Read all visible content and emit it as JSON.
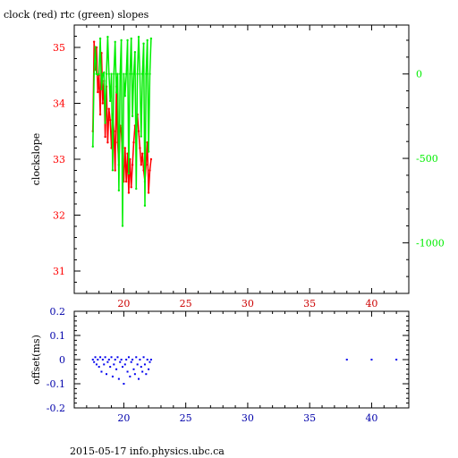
{
  "title": "clock (red) rtc (green) slopes",
  "footer": "2015-05-17 info.physics.ubc.ca",
  "colors": {
    "axis": "#000000",
    "clock": "#ff0000",
    "rtc": "#00ee00",
    "offset": "#0000ee",
    "top_x_ticks": "#cc0000",
    "bottom_y_ticks": "#0000aa"
  },
  "chart_data": [
    {
      "type": "line",
      "title": "clock (red) rtc (green) slopes",
      "ylabel": "clockslope",
      "xlim": [
        16.0,
        43.0
      ],
      "ylim_left": [
        30.6,
        35.4
      ],
      "ylim_right": [
        -1300,
        290
      ],
      "x_ticks": [
        20,
        25,
        30,
        35,
        40
      ],
      "y_left_ticks": [
        31,
        32,
        33,
        34,
        35
      ],
      "y_right_ticks": [
        0,
        -500,
        -1000
      ],
      "grid": false,
      "series": [
        {
          "name": "clock",
          "axis": "left",
          "x": [
            17.5,
            17.6,
            17.7,
            17.8,
            17.9,
            18.0,
            18.1,
            18.2,
            18.3,
            18.4,
            18.5,
            18.6,
            18.7,
            18.8,
            18.9,
            19.0,
            19.1,
            19.2,
            19.3,
            19.4,
            19.5,
            19.6,
            19.7,
            19.8,
            19.9,
            20.0,
            20.1,
            20.2,
            20.3,
            20.4,
            20.5,
            20.6,
            20.7,
            20.8,
            20.9,
            21.0,
            21.1,
            21.2,
            21.3,
            21.4,
            21.5,
            21.6,
            21.7,
            21.8,
            21.9,
            22.0,
            22.1,
            22.2
          ],
          "values": [
            33.5,
            35.1,
            34.6,
            35.0,
            34.2,
            34.5,
            33.8,
            34.9,
            34.0,
            34.4,
            33.4,
            34.3,
            33.3,
            33.9,
            33.7,
            33.2,
            33.8,
            33.5,
            32.8,
            34.3,
            33.3,
            32.9,
            33.6,
            33.5,
            33.0,
            32.6,
            33.2,
            32.6,
            33.1,
            32.4,
            33.0,
            32.5,
            32.9,
            33.3,
            33.6,
            33.4,
            33.8,
            33.5,
            33.2,
            32.9,
            33.1,
            32.8,
            32.6,
            32.9,
            33.3,
            32.4,
            32.8,
            33.0
          ]
        },
        {
          "name": "rtc",
          "axis": "right",
          "x": [
            17.5,
            17.6,
            17.7,
            17.8,
            17.9,
            18.0,
            18.1,
            18.2,
            18.3,
            18.4,
            18.5,
            18.6,
            18.7,
            18.8,
            18.9,
            19.0,
            19.1,
            19.2,
            19.3,
            19.4,
            19.5,
            19.6,
            19.7,
            19.8,
            19.9,
            20.0,
            20.1,
            20.2,
            20.3,
            20.4,
            20.5,
            20.6,
            20.7,
            20.8,
            20.9,
            21.0,
            21.1,
            21.2,
            21.3,
            21.4,
            21.5,
            21.6,
            21.7,
            21.8,
            21.9,
            22.0,
            22.1,
            22.2
          ],
          "values": [
            -430,
            0,
            160,
            0,
            -5,
            0,
            210,
            -90,
            0,
            8,
            -290,
            0,
            220,
            0,
            -160,
            0,
            -570,
            0,
            190,
            -110,
            0,
            -690,
            0,
            200,
            -900,
            0,
            -130,
            0,
            200,
            -590,
            0,
            210,
            -250,
            0,
            130,
            -680,
            0,
            220,
            0,
            -370,
            0,
            180,
            -780,
            0,
            200,
            -460,
            0,
            210
          ]
        }
      ]
    },
    {
      "type": "scatter",
      "ylabel": "offset(ms)",
      "xlim": [
        16.0,
        43.0
      ],
      "ylim": [
        -0.2,
        0.2
      ],
      "x_ticks": [
        20,
        25,
        30,
        35,
        40
      ],
      "y_ticks": [
        "0.2",
        "0.1",
        "0",
        "-0.1",
        "-0.2"
      ],
      "grid": false,
      "series": [
        {
          "name": "offset",
          "x": [
            17.5,
            17.6,
            17.7,
            17.8,
            17.9,
            18.0,
            18.1,
            18.2,
            18.3,
            18.4,
            18.5,
            18.6,
            18.7,
            18.8,
            18.9,
            19.0,
            19.1,
            19.2,
            19.3,
            19.4,
            19.5,
            19.6,
            19.7,
            19.8,
            19.9,
            20.0,
            20.1,
            20.2,
            20.3,
            20.4,
            20.5,
            20.6,
            20.7,
            20.8,
            20.9,
            21.0,
            21.1,
            21.2,
            21.3,
            21.4,
            21.5,
            21.6,
            21.7,
            21.8,
            21.9,
            22.0,
            22.1,
            22.2,
            38.0,
            40.0,
            42.0
          ],
          "values": [
            0.0,
            -0.01,
            0.01,
            -0.02,
            0.0,
            -0.03,
            0.01,
            -0.05,
            0.0,
            -0.02,
            0.01,
            -0.06,
            -0.01,
            0.0,
            -0.03,
            0.01,
            -0.07,
            -0.02,
            0.0,
            -0.04,
            0.01,
            -0.08,
            -0.01,
            0.0,
            -0.03,
            -0.1,
            -0.02,
            0.0,
            -0.05,
            0.01,
            -0.07,
            -0.01,
            0.0,
            -0.04,
            -0.06,
            0.01,
            -0.02,
            -0.08,
            0.0,
            -0.03,
            -0.05,
            0.01,
            -0.02,
            -0.06,
            0.0,
            -0.04,
            -0.01,
            0.0,
            0.0,
            0.0,
            0.0
          ]
        }
      ]
    }
  ]
}
